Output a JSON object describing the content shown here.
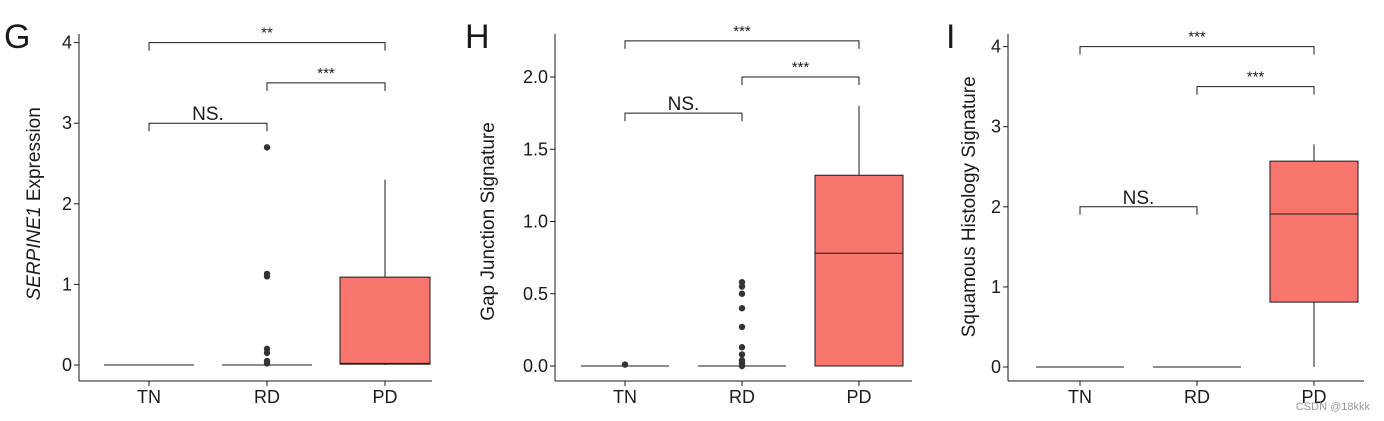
{
  "panel_letters": [
    "G",
    "H",
    "I"
  ],
  "y_titles": [
    {
      "italic": "SERPINE1",
      "plain": " Expression"
    },
    {
      "italic": "",
      "plain": "Gap Junction Signature"
    },
    {
      "italic": "",
      "plain": "Squamous Histology Signature"
    }
  ],
  "watermark": "CSDN @18kkk",
  "colors": {
    "box_fill": "#F8766D",
    "line": "#1a1a1a",
    "outlier": "#333333"
  },
  "chart_data": [
    {
      "type": "box",
      "panel": "G",
      "categories": [
        "TN",
        "RD",
        "PD"
      ],
      "ylim": [
        -0.15,
        4.1
      ],
      "yticks": [
        0,
        1,
        2,
        3,
        4
      ],
      "ytick_labels": [
        "0",
        "1",
        "2",
        "3",
        "4"
      ],
      "boxes": [
        {
          "category": "TN",
          "min": 0,
          "q1": 0,
          "median": 0,
          "q3": 0,
          "max": 0,
          "outliers": []
        },
        {
          "category": "RD",
          "min": 0,
          "q1": 0,
          "median": 0,
          "q3": 0,
          "max": 0,
          "outliers": [
            0.02,
            0.05,
            0.15,
            0.2,
            1.1,
            1.13,
            2.7
          ]
        },
        {
          "category": "PD",
          "min": 0,
          "q1": 0.01,
          "median": 0.02,
          "q3": 1.09,
          "max": 2.3,
          "outliers": [],
          "filled": true
        }
      ],
      "comparisons": [
        {
          "from": "TN",
          "to": "RD",
          "y": 3.0,
          "label": "NS."
        },
        {
          "from": "RD",
          "to": "PD",
          "y": 3.5,
          "label": "***"
        },
        {
          "from": "TN",
          "to": "PD",
          "y": 4.0,
          "label": "**"
        }
      ]
    },
    {
      "type": "box",
      "panel": "H",
      "categories": [
        "TN",
        "RD",
        "PD"
      ],
      "ylim": [
        -0.07,
        2.25
      ],
      "yticks": [
        0,
        0.5,
        1.0,
        1.5,
        2.0
      ],
      "ytick_labels": [
        "0.0",
        "0.5",
        "1.0",
        "1.5",
        "2.0"
      ],
      "boxes": [
        {
          "category": "TN",
          "min": 0,
          "q1": 0,
          "median": 0,
          "q3": 0,
          "max": 0,
          "outliers": [
            0.01
          ]
        },
        {
          "category": "RD",
          "min": 0,
          "q1": 0,
          "median": 0,
          "q3": 0,
          "max": 0,
          "outliers": [
            0.0,
            0.02,
            0.04,
            0.08,
            0.13,
            0.27,
            0.4,
            0.5,
            0.55,
            0.58
          ]
        },
        {
          "category": "PD",
          "min": 0,
          "q1": 0,
          "median": 0.78,
          "q3": 1.32,
          "max": 1.8,
          "outliers": [],
          "filled": true
        }
      ],
      "comparisons": [
        {
          "from": "TN",
          "to": "RD",
          "y": 1.75,
          "label": "NS."
        },
        {
          "from": "RD",
          "to": "PD",
          "y": 2.0,
          "label": "***"
        },
        {
          "from": "TN",
          "to": "PD",
          "y": 2.25,
          "label": "***"
        }
      ]
    },
    {
      "type": "box",
      "panel": "I",
      "categories": [
        "TN",
        "RD",
        "PD"
      ],
      "ylim": [
        -0.15,
        4.1
      ],
      "yticks": [
        0,
        1,
        2,
        3,
        4
      ],
      "ytick_labels": [
        "0",
        "1",
        "2",
        "3",
        "4"
      ],
      "boxes": [
        {
          "category": "TN",
          "min": 0,
          "q1": 0,
          "median": 0,
          "q3": 0,
          "max": 0,
          "outliers": []
        },
        {
          "category": "RD",
          "min": 0,
          "q1": 0,
          "median": 0,
          "q3": 0,
          "max": 0,
          "outliers": []
        },
        {
          "category": "PD",
          "min": 0,
          "q1": 0.81,
          "median": 1.91,
          "q3": 2.57,
          "max": 2.78,
          "outliers": [],
          "filled": true
        }
      ],
      "comparisons": [
        {
          "from": "TN",
          "to": "RD",
          "y": 2.0,
          "label": "NS."
        },
        {
          "from": "RD",
          "to": "PD",
          "y": 3.5,
          "label": "***"
        },
        {
          "from": "TN",
          "to": "PD",
          "y": 4.0,
          "label": "***"
        }
      ]
    }
  ]
}
